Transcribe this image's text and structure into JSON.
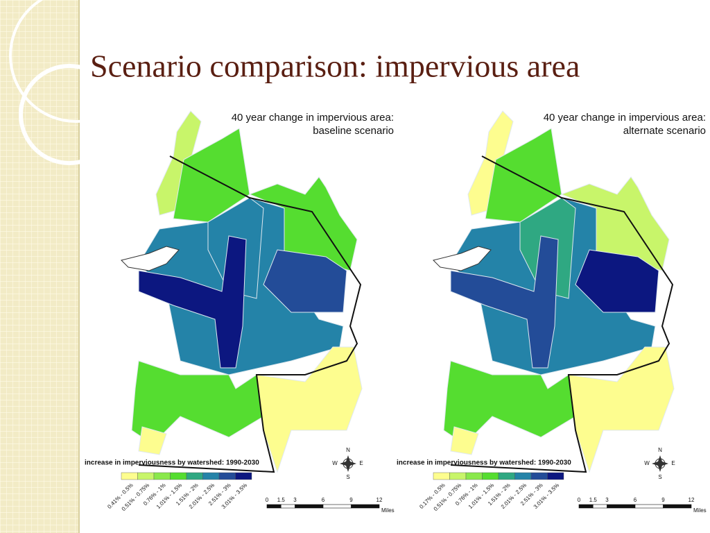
{
  "title": "Scenario comparison: impervious area",
  "maps": [
    {
      "heading": [
        "40 year change in impervious area:",
        "baseline scenario"
      ],
      "legend": {
        "title": "increase in imperviousness by watershed: 1990-2030",
        "items": [
          {
            "label": "0.41% - 0.5%",
            "color": "#fdfd8f"
          },
          {
            "label": "0.51% - 0.75%",
            "color": "#c8f56a"
          },
          {
            "label": "0.76% - 1%",
            "color": "#8ae84b"
          },
          {
            "label": "1.01% - 1.5%",
            "color": "#55dd30"
          },
          {
            "label": "1.51% - 2%",
            "color": "#2fa882"
          },
          {
            "label": "2.01% - 2.5%",
            "color": "#2483a8"
          },
          {
            "label": "2.51% - 3%",
            "color": "#234c98"
          },
          {
            "label": "3.01% - 3.5%",
            "color": "#0c1780"
          }
        ]
      },
      "scale": {
        "ticks": [
          0,
          1.5,
          3,
          6,
          9,
          12
        ],
        "unit": "Miles"
      },
      "compass": [
        "N",
        "E",
        "S",
        "W"
      ]
    },
    {
      "heading": [
        "40 year change in impervious area:",
        "alternate scenario"
      ],
      "legend": {
        "title": "increase in imperviousness by watershed: 1990-2030",
        "items": [
          {
            "label": "0.17% - 0.5%",
            "color": "#fdfd8f"
          },
          {
            "label": "0.51% - 0.75%",
            "color": "#c8f56a"
          },
          {
            "label": "0.76% - 1%",
            "color": "#8ae84b"
          },
          {
            "label": "1.01% - 1.5%",
            "color": "#55dd30"
          },
          {
            "label": "1.51% - 2%",
            "color": "#2fa882"
          },
          {
            "label": "2.01% - 2.5%",
            "color": "#2483a8"
          },
          {
            "label": "2.51% - 3%",
            "color": "#234c98"
          },
          {
            "label": "3.01% - 3.5%",
            "color": "#0c1780"
          }
        ]
      },
      "scale": {
        "ticks": [
          0,
          1.5,
          3,
          6,
          9,
          12
        ],
        "unit": "Miles"
      },
      "compass": [
        "N",
        "E",
        "S",
        "W"
      ]
    }
  ]
}
